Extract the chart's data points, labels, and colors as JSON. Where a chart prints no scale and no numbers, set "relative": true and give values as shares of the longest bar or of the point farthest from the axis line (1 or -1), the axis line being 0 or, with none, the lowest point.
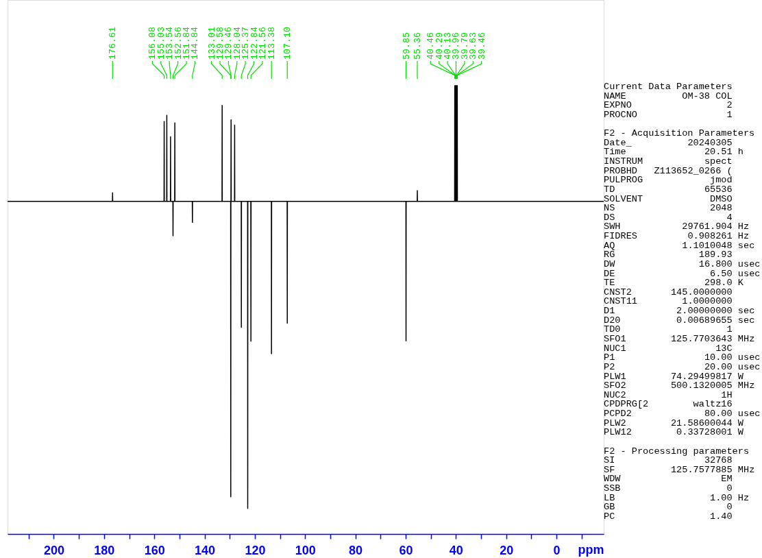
{
  "chart_data": {
    "type": "line",
    "relative": true,
    "xlabel": "ppm",
    "xlim": [
      218.4,
      -18.8
    ],
    "tick_labels": "x",
    "xticks": [
      {
        "value": 210,
        "label": null
      },
      200,
      {
        "value": 190,
        "label": null
      },
      180,
      {
        "value": 170,
        "label": null
      },
      160,
      {
        "value": 150,
        "label": null
      },
      140,
      {
        "value": 130,
        "label": null
      },
      120,
      {
        "value": 110,
        "label": null
      },
      100,
      {
        "value": 90,
        "label": null
      },
      80,
      {
        "value": 70,
        "label": null
      },
      60,
      {
        "value": 50,
        "label": null
      },
      40,
      {
        "value": 30,
        "label": null
      },
      20,
      {
        "value": 10,
        "label": null
      },
      0,
      {
        "value": -10,
        "label": null
      }
    ],
    "series": [
      {
        "color": "#000000",
        "x": [
          218.4,
          176.66,
          176.61,
          176.56,
          156.13,
          156.08,
          156.03,
          155.08,
          155.03,
          154.98,
          153.59,
          153.54,
          153.49,
          152.61,
          152.56,
          152.51,
          151.89,
          151.84,
          151.79,
          144.89,
          144.84,
          144.79,
          133.06,
          133.01,
          132.96,
          129.63,
          129.58,
          129.53,
          129.51,
          129.46,
          129.41,
          128.09,
          128.04,
          127.99,
          125.42,
          125.37,
          125.32,
          122.89,
          122.84,
          122.79,
          121.61,
          121.56,
          121.51,
          113.43,
          113.38,
          113.33,
          107.15,
          107.1,
          107.05,
          59.9,
          59.85,
          59.8,
          55.41,
          55.36,
          55.31,
          40.51,
          40.46,
          40.41,
          40.34,
          40.29,
          40.24,
          40.18,
          40.13,
          40.08,
          40.01,
          39.96,
          39.91,
          39.84,
          39.79,
          39.74,
          39.68,
          39.63,
          39.58,
          39.51,
          39.46,
          39.41,
          -18.8
        ],
        "values": [
          0.742,
          0.742,
          0.761,
          0.742,
          0.742,
          0.92,
          0.742,
          0.742,
          0.934,
          0.742,
          0.742,
          0.886,
          0.742,
          0.742,
          0.665,
          0.742,
          0.742,
          0.917,
          0.742,
          0.742,
          0.695,
          0.742,
          0.742,
          0.956,
          0.742,
          0.742,
          0.083,
          0.742,
          0.742,
          0.924,
          0.742,
          0.742,
          0.912,
          0.742,
          0.742,
          0.461,
          0.742,
          0.742,
          0.057,
          0.742,
          0.742,
          0.43,
          0.742,
          0.742,
          0.402,
          0.742,
          0.742,
          0.47,
          0.742,
          0.742,
          0.431,
          0.742,
          0.742,
          0.766,
          0.742,
          0.742,
          1.0,
          0.742,
          0.742,
          1.0,
          0.742,
          0.742,
          1.0,
          0.742,
          0.742,
          1.0,
          0.742,
          0.742,
          1.0,
          0.742,
          0.742,
          1.0,
          0.742,
          0.742,
          1.0,
          0.742,
          0.742
        ]
      }
    ],
    "annotations": [
      {
        "text": "176.61",
        "x": 176.61
      },
      {
        "text": "156.08",
        "x": 156.08
      },
      {
        "text": "155.03",
        "x": 155.03
      },
      {
        "text": "153.54",
        "x": 153.54
      },
      {
        "text": "152.56",
        "x": 152.56
      },
      {
        "text": "151.84",
        "x": 151.84
      },
      {
        "text": "144.84",
        "x": 144.84
      },
      {
        "text": "133.01",
        "x": 133.01
      },
      {
        "text": "129.58",
        "x": 129.58
      },
      {
        "text": "129.46",
        "x": 129.46
      },
      {
        "text": "128.04",
        "x": 128.04
      },
      {
        "text": "125.37",
        "x": 125.37
      },
      {
        "text": "122.84",
        "x": 122.84
      },
      {
        "text": "121.56",
        "x": 121.56
      },
      {
        "text": "113.38",
        "x": 113.38
      },
      {
        "text": "107.10",
        "x": 107.1
      },
      {
        "text": "59.85",
        "x": 59.85
      },
      {
        "text": "55.36",
        "x": 55.36
      },
      {
        "text": "40.46",
        "x": 40.46
      },
      {
        "text": "40.29",
        "x": 40.29
      },
      {
        "text": "40.13",
        "x": 40.13
      },
      {
        "text": "39.96",
        "x": 39.96
      },
      {
        "text": "39.79",
        "x": 39.79
      },
      {
        "text": "39.63",
        "x": 39.63
      },
      {
        "text": "39.46",
        "x": 39.46
      },
      "Current Data Parameters",
      "NAME          OM-38 COL",
      "EXPNO                 2",
      "PROCNO                1",
      "F2 - Acquisition Parameters",
      "Date_          20240305",
      "Time              20.51 h",
      "INSTRUM           spect",
      "PROBHD   Z113652_0266 (",
      "PULPROG            jmod",
      "TD                65536",
      "SOLVENT            DMSO",
      "NS                 2048",
      "DS                    4",
      "SWH           29761.904 Hz",
      "FIDRES         0.908261 Hz",
      "AQ            1.1010048 sec",
      "RG               189.93",
      "DW               16.800 usec",
      "DE                 6.50 usec",
      "TE                298.0 K",
      "CNST2       145.0000000",
      "CNST11        1.0000000",
      "D1           2.00000000 sec",
      "D20          0.00689655 sec",
      "TD0                   1",
      "SFO1        125.7703643 MHz",
      "NUC1                13C",
      "P1                10.00 usec",
      "P2                20.00 usec",
      "PLW1        74.29499817 W",
      "SFO2        500.1320005 MHz",
      "NUC2                 1H",
      "CPDPRG[2        waltz16",
      "PCPD2             80.00 usec",
      "PLW2        21.58600044 W",
      "PLW12        0.33728001 W",
      "F2 - Processing parameters",
      "SI                32768",
      "SF          125.7577885 MHz",
      "WDW                  EM",
      "SSB                   0",
      "LB                 1.00 Hz",
      "GB                    0",
      "PC                 1.40"
    ]
  }
}
